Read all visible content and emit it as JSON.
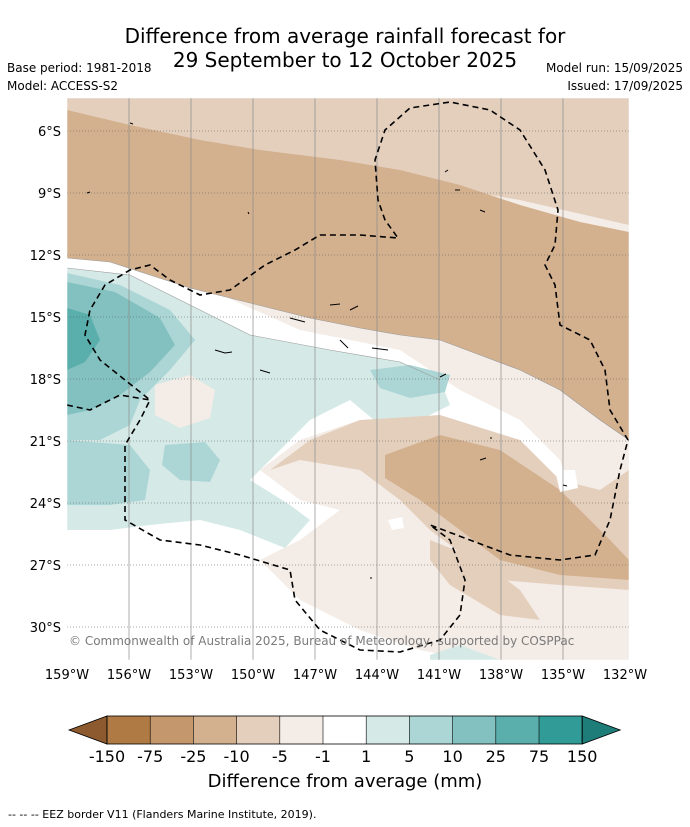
{
  "title_line1": "Difference from average rainfall forecast for",
  "title_line2": "29 September to 12 October 2025",
  "meta": {
    "base_period": "Base period: 1981-2018",
    "model": "Model: ACCESS-S2",
    "model_run": "Model run: 15/09/2025",
    "issued": "Issued: 17/09/2025"
  },
  "map": {
    "lat_labels": [
      "6°S",
      "9°S",
      "12°S",
      "15°S",
      "18°S",
      "21°S",
      "24°S",
      "27°S",
      "30°S"
    ],
    "lon_labels": [
      "159°W",
      "156°W",
      "153°W",
      "150°W",
      "147°W",
      "144°W",
      "141°W",
      "138°W",
      "135°W",
      "132°W"
    ],
    "copyright": "© Commonwealth of Australia 2025, Bureau of Meteorology, supported by COSPPac"
  },
  "colorbar": {
    "tick_labels": [
      "-150",
      "-75",
      "-25",
      "-10",
      "-5",
      "-1",
      "1",
      "5",
      "10",
      "25",
      "75",
      "150"
    ],
    "colors": [
      "#8c5a2e",
      "#b07a44",
      "#c4976c",
      "#d3b18f",
      "#e4cfbd",
      "#f4ece6",
      "#ffffff",
      "#d5e9e7",
      "#acd6d5",
      "#82c1c0",
      "#5aaeab",
      "#319b97",
      "#1f7d79"
    ],
    "label": "Difference from average (mm)"
  },
  "legend_note": "--  --  -- EEZ border V11 (Flanders Marine Institute, 2019)."
}
